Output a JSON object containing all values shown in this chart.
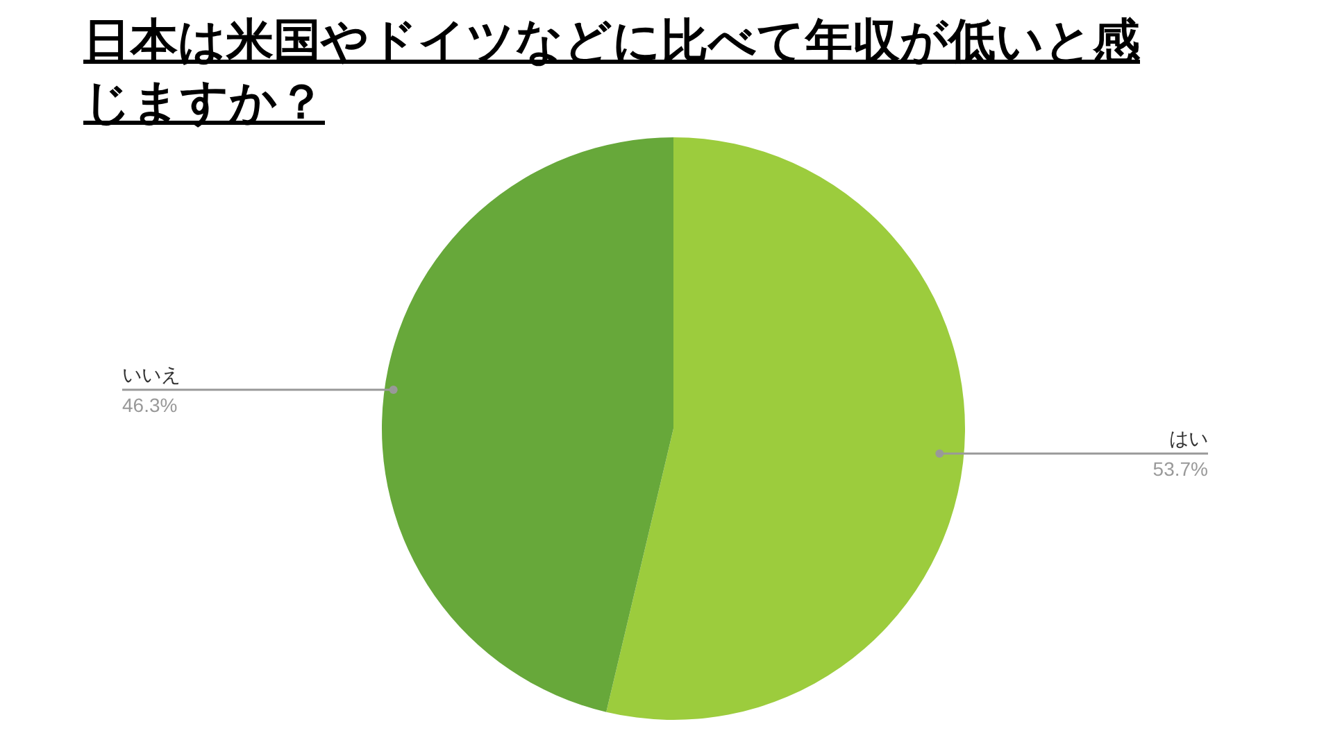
{
  "chart_data": {
    "type": "pie",
    "title": "日本は米国やドイツなどに比べて年収が低いと感じますか？",
    "categories": [
      "はい",
      "いいえ"
    ],
    "values": [
      53.7,
      46.3
    ],
    "value_labels": [
      "53.7%",
      "46.3%"
    ],
    "colors": [
      "#9ccc3d",
      "#67a83a"
    ],
    "legend": false
  }
}
